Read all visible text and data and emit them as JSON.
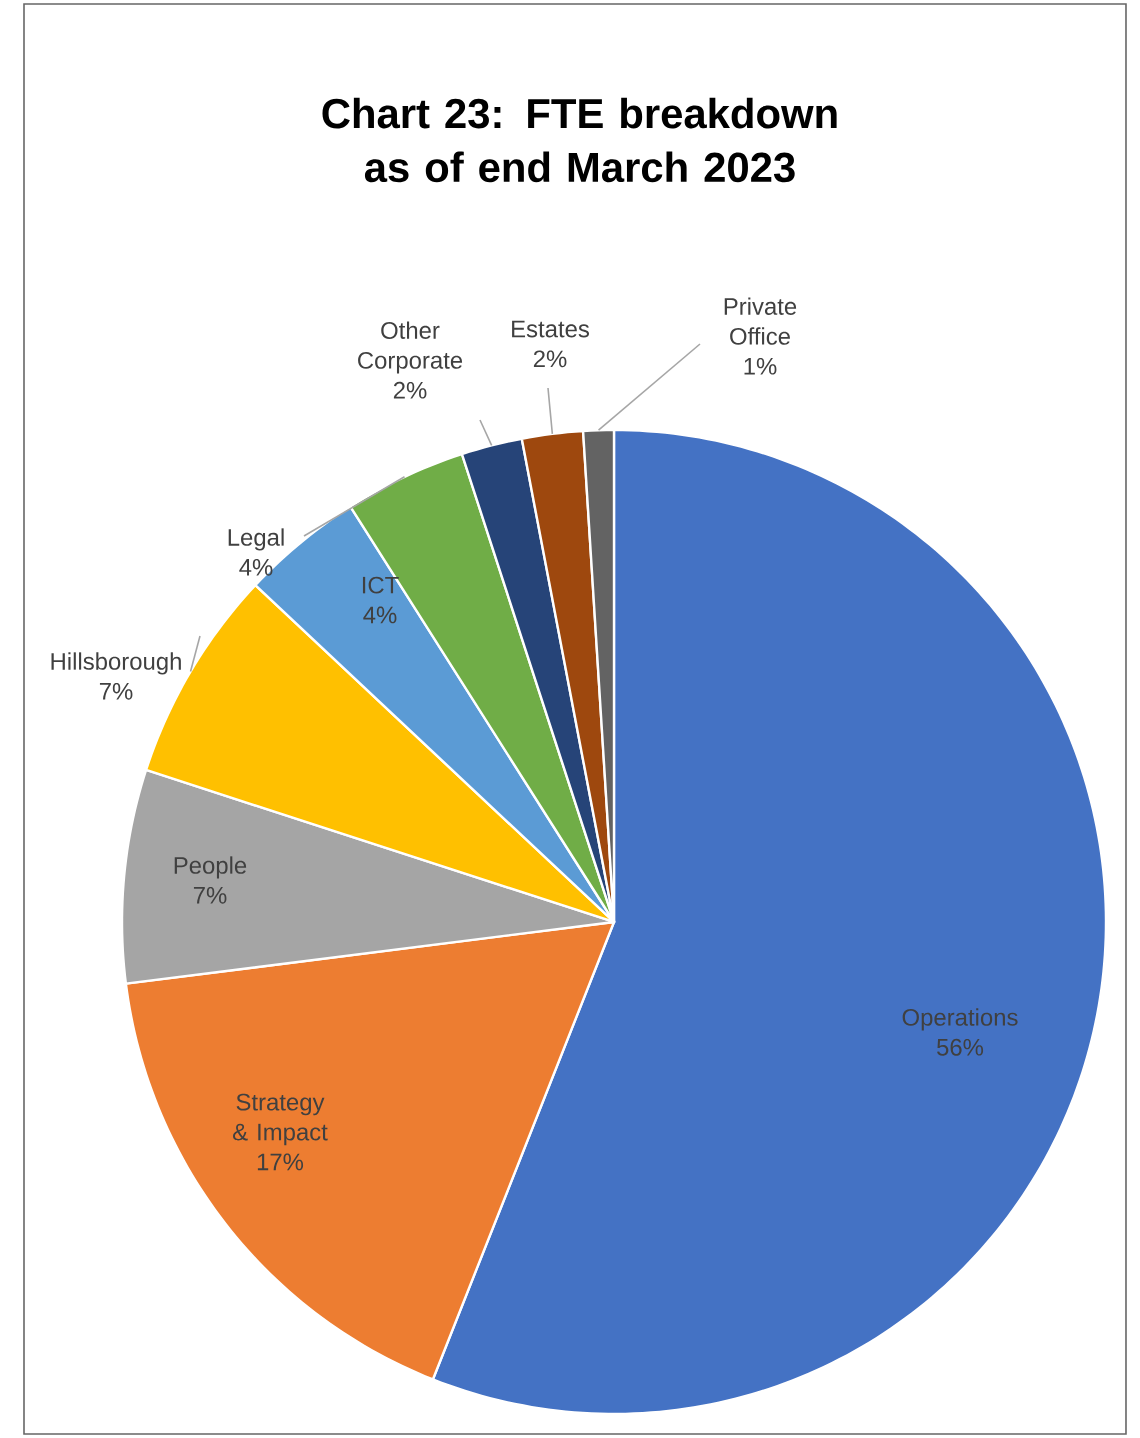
{
  "chart_data": {
    "type": "pie",
    "title": "Chart 23: FTE breakdown as of end March 2023",
    "categories": [
      "Operations",
      "Strategy & Impact",
      "People",
      "Hillsborough",
      "ICT",
      "Legal",
      "Other Corporate",
      "Estates",
      "Private Office"
    ],
    "values": [
      56,
      17,
      7,
      7,
      4,
      4,
      2,
      2,
      1
    ],
    "value_labels": [
      "56%",
      "17%",
      "7%",
      "7%",
      "4%",
      "4%",
      "2%",
      "2%",
      "1%"
    ],
    "colors": [
      "#4472c4",
      "#ed7d31",
      "#a5a5a5",
      "#ffc000",
      "#5b9bd5",
      "#70ad47",
      "#264478",
      "#9e480e",
      "#636363"
    ]
  }
}
